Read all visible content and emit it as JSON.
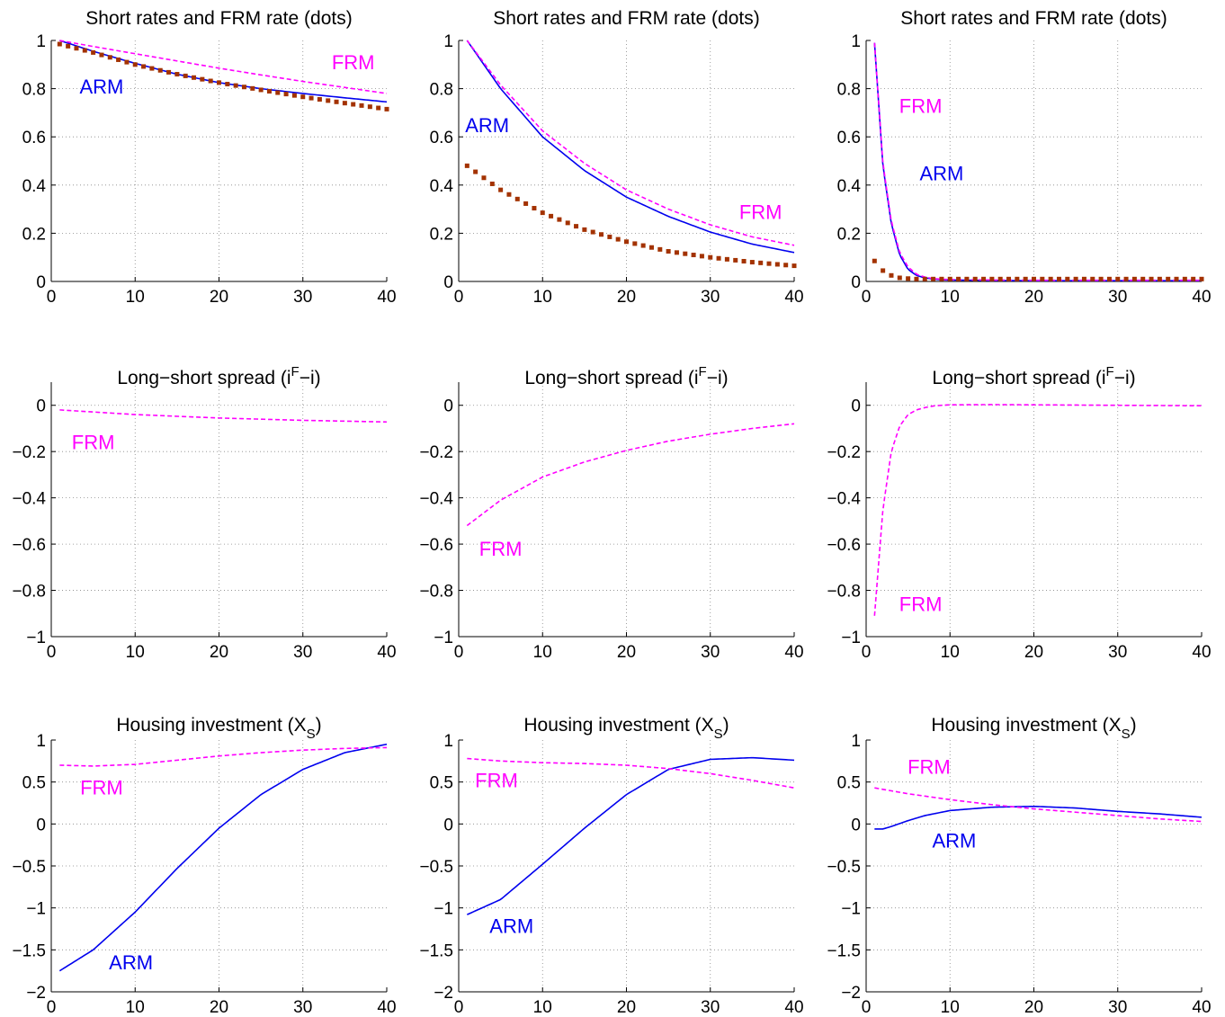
{
  "figure": {
    "row_titles": [
      "Short rates and FRM rate (dots)",
      "Long−short spread (i",
      "Housing investment (X"
    ],
    "spread_super": "F",
    "spread_tail": "−i)",
    "housing_sub": "S",
    "housing_tail": ")"
  },
  "colors": {
    "arm": "#0000ee",
    "frm": "#ff00ff",
    "dots": "#a33200"
  },
  "chart_data": [
    {
      "type": "line",
      "row": 0,
      "col": 0,
      "title": "Short rates and FRM rate (dots)",
      "xlim": [
        0,
        40
      ],
      "ylim": [
        0,
        1
      ],
      "xticks": [
        0,
        10,
        20,
        30,
        40
      ],
      "xtick_labels": [
        "0",
        "10",
        "20",
        "30",
        "40"
      ],
      "yticks": [
        0,
        0.2,
        0.4,
        0.6,
        0.8,
        1
      ],
      "ytick_labels": [
        "0",
        "0.2",
        "0.4",
        "0.6",
        "0.8",
        "1"
      ],
      "grid": true,
      "series": [
        {
          "name": "ARM",
          "style": "solid",
          "color": "arm",
          "x": [
            1,
            5,
            10,
            15,
            20,
            25,
            30,
            35,
            40
          ],
          "y": [
            1.0,
            0.955,
            0.905,
            0.86,
            0.825,
            0.8,
            0.78,
            0.762,
            0.745
          ]
        },
        {
          "name": "FRM",
          "style": "dashed",
          "color": "frm",
          "x": [
            1,
            5,
            10,
            15,
            20,
            25,
            30,
            35,
            40
          ],
          "y": [
            1.0,
            0.975,
            0.945,
            0.915,
            0.885,
            0.857,
            0.83,
            0.805,
            0.78
          ]
        },
        {
          "style": "dots",
          "color": "dots",
          "x": [
            1,
            5,
            10,
            15,
            20,
            25,
            30,
            35,
            40
          ],
          "y": [
            0.985,
            0.95,
            0.9,
            0.86,
            0.825,
            0.795,
            0.766,
            0.74,
            0.715
          ]
        }
      ],
      "labels": [
        {
          "text": "FRM",
          "color": "frm",
          "x": 36,
          "y": 0.88
        },
        {
          "text": "ARM",
          "color": "arm",
          "x": 6,
          "y": 0.78
        }
      ]
    },
    {
      "type": "line",
      "row": 0,
      "col": 1,
      "title": "Short rates and FRM rate (dots)",
      "xlim": [
        0,
        40
      ],
      "ylim": [
        0,
        1
      ],
      "xticks": [
        0,
        10,
        20,
        30,
        40
      ],
      "xtick_labels": [
        "0",
        "10",
        "20",
        "30",
        "40"
      ],
      "yticks": [
        0,
        0.2,
        0.4,
        0.6,
        0.8,
        1
      ],
      "ytick_labels": [
        "0",
        "0.2",
        "0.4",
        "0.6",
        "0.8",
        "1"
      ],
      "grid": true,
      "series": [
        {
          "name": "ARM",
          "style": "solid",
          "color": "arm",
          "x": [
            1,
            5,
            10,
            15,
            20,
            25,
            30,
            35,
            40
          ],
          "y": [
            1.0,
            0.8,
            0.6,
            0.46,
            0.35,
            0.27,
            0.205,
            0.155,
            0.12
          ]
        },
        {
          "name": "FRM",
          "style": "dashed",
          "color": "frm",
          "x": [
            1,
            5,
            10,
            15,
            20,
            25,
            30,
            35,
            40
          ],
          "y": [
            1.0,
            0.815,
            0.625,
            0.49,
            0.38,
            0.3,
            0.235,
            0.185,
            0.15
          ]
        },
        {
          "style": "dots",
          "color": "dots",
          "x": [
            1,
            5,
            10,
            15,
            20,
            25,
            30,
            35,
            40
          ],
          "y": [
            0.48,
            0.38,
            0.285,
            0.215,
            0.165,
            0.125,
            0.1,
            0.08,
            0.065
          ]
        }
      ],
      "labels": [
        {
          "text": "ARM",
          "color": "arm",
          "x": 3.4,
          "y": 0.62
        },
        {
          "text": "FRM",
          "color": "frm",
          "x": 36,
          "y": 0.26
        }
      ]
    },
    {
      "type": "line",
      "row": 0,
      "col": 2,
      "title": "Short rates and FRM rate (dots)",
      "xlim": [
        0,
        40
      ],
      "ylim": [
        0,
        1
      ],
      "xticks": [
        0,
        10,
        20,
        30,
        40
      ],
      "xtick_labels": [
        "0",
        "10",
        "20",
        "30",
        "40"
      ],
      "yticks": [
        0,
        0.2,
        0.4,
        0.6,
        0.8,
        1
      ],
      "ytick_labels": [
        "0",
        "0.2",
        "0.4",
        "0.6",
        "0.8",
        "1"
      ],
      "grid": true,
      "series": [
        {
          "name": "ARM",
          "style": "solid",
          "color": "arm",
          "x": [
            1,
            2,
            3,
            4,
            5,
            6,
            7,
            8,
            9,
            10,
            15,
            20,
            30,
            40
          ],
          "y": [
            0.99,
            0.48,
            0.24,
            0.11,
            0.05,
            0.025,
            0.015,
            0.01,
            0.007,
            0.006,
            0.004,
            0.003,
            0.003,
            0.003
          ]
        },
        {
          "name": "FRM",
          "style": "dashed",
          "color": "frm",
          "x": [
            1,
            2,
            3,
            4,
            5,
            6,
            7,
            8,
            9,
            10,
            15,
            20,
            30,
            40
          ],
          "y": [
            0.99,
            0.49,
            0.25,
            0.12,
            0.06,
            0.03,
            0.018,
            0.012,
            0.009,
            0.008,
            0.006,
            0.005,
            0.005,
            0.005
          ]
        },
        {
          "style": "dots",
          "color": "dots",
          "x": [
            1,
            2,
            3,
            4,
            5,
            6,
            7,
            8,
            10,
            15,
            20,
            30,
            40
          ],
          "y": [
            0.085,
            0.045,
            0.025,
            0.015,
            0.012,
            0.01,
            0.01,
            0.01,
            0.01,
            0.01,
            0.01,
            0.01,
            0.01
          ]
        }
      ],
      "labels": [
        {
          "text": "FRM",
          "color": "frm",
          "x": 6.5,
          "y": 0.7
        },
        {
          "text": "ARM",
          "color": "arm",
          "x": 9,
          "y": 0.42
        }
      ]
    },
    {
      "type": "line",
      "row": 1,
      "col": 0,
      "title": "Long−short spread (iF−i)",
      "xlim": [
        0,
        40
      ],
      "ylim": [
        -1,
        0.1
      ],
      "xticks": [
        0,
        10,
        20,
        30,
        40
      ],
      "xtick_labels": [
        "0",
        "10",
        "20",
        "30",
        "40"
      ],
      "yticks": [
        -1,
        -0.8,
        -0.6,
        -0.4,
        -0.2,
        0
      ],
      "ytick_labels": [
        "−1",
        "−0.8",
        "−0.6",
        "−0.4",
        "−0.2",
        "0"
      ],
      "grid": true,
      "series": [
        {
          "name": "FRM",
          "style": "dashed",
          "color": "frm",
          "x": [
            1,
            10,
            20,
            30,
            40
          ],
          "y": [
            -0.02,
            -0.04,
            -0.055,
            -0.065,
            -0.072
          ]
        }
      ],
      "labels": [
        {
          "text": "FRM",
          "color": "frm",
          "x": 5,
          "y": -0.19
        }
      ]
    },
    {
      "type": "line",
      "row": 1,
      "col": 1,
      "title": "Long−short spread (iF−i)",
      "xlim": [
        0,
        40
      ],
      "ylim": [
        -1,
        0.1
      ],
      "xticks": [
        0,
        10,
        20,
        30,
        40
      ],
      "xtick_labels": [
        "0",
        "10",
        "20",
        "30",
        "40"
      ],
      "yticks": [
        -1,
        -0.8,
        -0.6,
        -0.4,
        -0.2,
        0
      ],
      "ytick_labels": [
        "−1",
        "−0.8",
        "−0.6",
        "−0.4",
        "−0.2",
        "0"
      ],
      "grid": true,
      "series": [
        {
          "name": "FRM",
          "style": "dashed",
          "color": "frm",
          "x": [
            1,
            5,
            10,
            15,
            20,
            25,
            30,
            35,
            40
          ],
          "y": [
            -0.52,
            -0.41,
            -0.31,
            -0.245,
            -0.195,
            -0.155,
            -0.125,
            -0.1,
            -0.08
          ]
        }
      ],
      "labels": [
        {
          "text": "FRM",
          "color": "frm",
          "x": 5,
          "y": -0.65
        }
      ]
    },
    {
      "type": "line",
      "row": 1,
      "col": 2,
      "title": "Long−short spread (iF−i)",
      "xlim": [
        0,
        40
      ],
      "ylim": [
        -1,
        0.1
      ],
      "xticks": [
        0,
        10,
        20,
        30,
        40
      ],
      "xtick_labels": [
        "0",
        "10",
        "20",
        "30",
        "40"
      ],
      "yticks": [
        -1,
        -0.8,
        -0.6,
        -0.4,
        -0.2,
        0
      ],
      "ytick_labels": [
        "−1",
        "−0.8",
        "−0.6",
        "−0.4",
        "−0.2",
        "0"
      ],
      "grid": true,
      "series": [
        {
          "name": "FRM",
          "style": "dashed",
          "color": "frm",
          "x": [
            1,
            2,
            3,
            4,
            5,
            6,
            7,
            8,
            9,
            10,
            15,
            20,
            30,
            40
          ],
          "y": [
            -0.91,
            -0.45,
            -0.2,
            -0.09,
            -0.04,
            -0.02,
            -0.01,
            -0.003,
            0.0,
            0.002,
            0.003,
            0.002,
            0.0,
            -0.002
          ]
        }
      ],
      "labels": [
        {
          "text": "FRM",
          "color": "frm",
          "x": 6.5,
          "y": -0.89
        }
      ]
    },
    {
      "type": "line",
      "row": 2,
      "col": 0,
      "title": "Housing investment (XS)",
      "xlim": [
        0,
        40
      ],
      "ylim": [
        -2,
        1
      ],
      "xticks": [
        0,
        10,
        20,
        30,
        40
      ],
      "xtick_labels": [
        "0",
        "10",
        "20",
        "30",
        "40"
      ],
      "yticks": [
        -2,
        -1.5,
        -1,
        -0.5,
        0,
        0.5,
        1
      ],
      "ytick_labels": [
        "−2",
        "−1.5",
        "−1",
        "−0.5",
        "0",
        "0.5",
        "1"
      ],
      "grid": true,
      "series": [
        {
          "name": "ARM",
          "style": "solid",
          "color": "arm",
          "x": [
            1,
            5,
            10,
            15,
            20,
            25,
            30,
            35,
            40
          ],
          "y": [
            -1.75,
            -1.5,
            -1.05,
            -0.53,
            -0.05,
            0.35,
            0.65,
            0.85,
            0.95
          ]
        },
        {
          "name": "FRM",
          "style": "dashed",
          "color": "frm",
          "x": [
            1,
            5,
            10,
            15,
            20,
            25,
            30,
            35,
            40
          ],
          "y": [
            0.7,
            0.69,
            0.71,
            0.76,
            0.81,
            0.85,
            0.88,
            0.9,
            0.91
          ]
        }
      ],
      "labels": [
        {
          "text": "FRM",
          "color": "frm",
          "x": 6,
          "y": 0.35
        },
        {
          "text": "ARM",
          "color": "arm",
          "x": 9.5,
          "y": -1.73
        }
      ]
    },
    {
      "type": "line",
      "row": 2,
      "col": 1,
      "title": "Housing investment (XS)",
      "xlim": [
        0,
        40
      ],
      "ylim": [
        -2,
        1
      ],
      "xticks": [
        0,
        10,
        20,
        30,
        40
      ],
      "xtick_labels": [
        "0",
        "10",
        "20",
        "30",
        "40"
      ],
      "yticks": [
        -2,
        -1.5,
        -1,
        -0.5,
        0,
        0.5,
        1
      ],
      "ytick_labels": [
        "−2",
        "−1.5",
        "−1",
        "−0.5",
        "0",
        "0.5",
        "1"
      ],
      "grid": true,
      "series": [
        {
          "name": "ARM",
          "style": "solid",
          "color": "arm",
          "x": [
            1,
            5,
            10,
            15,
            20,
            25,
            30,
            35,
            40
          ],
          "y": [
            -1.08,
            -0.9,
            -0.48,
            -0.05,
            0.35,
            0.65,
            0.77,
            0.79,
            0.76
          ]
        },
        {
          "name": "FRM",
          "style": "dashed",
          "color": "frm",
          "x": [
            1,
            5,
            10,
            15,
            20,
            25,
            30,
            35,
            40
          ],
          "y": [
            0.78,
            0.75,
            0.73,
            0.72,
            0.7,
            0.66,
            0.6,
            0.52,
            0.43
          ]
        }
      ],
      "labels": [
        {
          "text": "FRM",
          "color": "frm",
          "x": 4.5,
          "y": 0.44
        },
        {
          "text": "ARM",
          "color": "arm",
          "x": 6.3,
          "y": -1.3
        }
      ]
    },
    {
      "type": "line",
      "row": 2,
      "col": 2,
      "title": "Housing investment (XS)",
      "xlim": [
        0,
        40
      ],
      "ylim": [
        -2,
        1
      ],
      "xticks": [
        0,
        10,
        20,
        30,
        40
      ],
      "xtick_labels": [
        "0",
        "10",
        "20",
        "30",
        "40"
      ],
      "yticks": [
        -2,
        -1.5,
        -1,
        -0.5,
        0,
        0.5,
        1
      ],
      "ytick_labels": [
        "−2",
        "−1.5",
        "−1",
        "−0.5",
        "0",
        "0.5",
        "1"
      ],
      "grid": true,
      "series": [
        {
          "name": "ARM",
          "style": "solid",
          "color": "arm",
          "x": [
            1,
            2,
            3,
            5,
            7,
            10,
            15,
            20,
            25,
            30,
            35,
            40
          ],
          "y": [
            -0.06,
            -0.06,
            -0.03,
            0.04,
            0.1,
            0.16,
            0.2,
            0.21,
            0.19,
            0.15,
            0.12,
            0.08
          ]
        },
        {
          "name": "FRM",
          "style": "dashed",
          "color": "frm",
          "x": [
            1,
            5,
            10,
            15,
            20,
            25,
            30,
            35,
            40
          ],
          "y": [
            0.43,
            0.36,
            0.29,
            0.23,
            0.18,
            0.14,
            0.1,
            0.06,
            0.03
          ]
        }
      ],
      "labels": [
        {
          "text": "FRM",
          "color": "frm",
          "x": 7.5,
          "y": 0.6
        },
        {
          "text": "ARM",
          "color": "arm",
          "x": 10.5,
          "y": -0.28
        }
      ]
    }
  ]
}
